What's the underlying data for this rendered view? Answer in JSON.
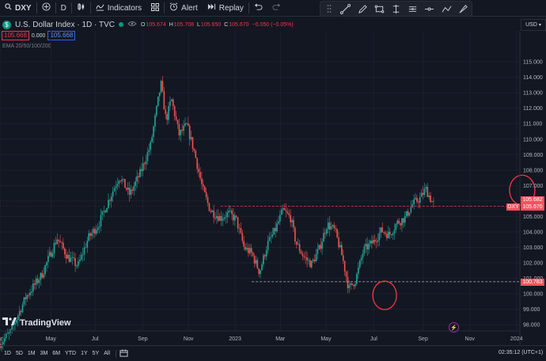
{
  "toolbar": {
    "symbol": "DXY",
    "interval": "D",
    "indicators_label": "Indicators",
    "alert_label": "Alert",
    "replay_label": "Replay"
  },
  "header": {
    "title": "U.S. Dollar Index · 1D · TVC",
    "o_label": "O",
    "o_value": "105.674",
    "h_label": "H",
    "h_value": "105.708",
    "l_label": "L",
    "l_value": "105.650",
    "c_label": "C",
    "c_value": "105.670",
    "change": "−0.050 (−0.05%)",
    "bid": "105.668",
    "spread": "0.000",
    "ask": "105.668",
    "ema_label": "EMA 20/50/100/200"
  },
  "currency": "USD",
  "price_axis": {
    "ticks": [
      "115.000",
      "114.000",
      "113.000",
      "112.000",
      "111.000",
      "110.000",
      "109.000",
      "108.000",
      "107.000",
      "106.000",
      "105.000",
      "104.000",
      "103.000",
      "102.000",
      "101.000",
      "100.000",
      "99.000",
      "98.000"
    ],
    "tag_high": "105.682",
    "tag_symbol": "DXY",
    "tag_last": "105.670",
    "tag_support": "100.783"
  },
  "time_axis": {
    "labels": [
      "ar",
      "May",
      "Jul",
      "Sep",
      "Nov",
      "2023",
      "Mar",
      "May",
      "Jul",
      "Sep",
      "Nov",
      "2024"
    ]
  },
  "logo_text": "TradingView",
  "bottom": {
    "timeframes": [
      "1D",
      "5D",
      "1M",
      "3M",
      "6M",
      "YTD",
      "1Y",
      "5Y",
      "All"
    ],
    "clock": "02:35:12 (UTC+1)"
  },
  "colors": {
    "background": "#131722",
    "up": "#26a69a",
    "down": "#ef5350",
    "annotation": "#f23645",
    "price_tag": "#f7525f"
  },
  "chart_data": {
    "type": "candlestick",
    "symbol": "DXY",
    "ylim": [
      97.6,
      117.0
    ],
    "resistance_level": 105.67,
    "support_level": 100.78,
    "circled_points": [
      [
        0.67,
        95.3
      ],
      [
        0.935,
        106.7
      ]
    ],
    "path": [
      [
        0.0,
        96.8
      ],
      [
        0.02,
        97.5
      ],
      [
        0.05,
        99.8
      ],
      [
        0.08,
        101.2
      ],
      [
        0.11,
        103.6
      ],
      [
        0.13,
        102.4
      ],
      [
        0.15,
        101.8
      ],
      [
        0.17,
        103.6
      ],
      [
        0.19,
        104.5
      ],
      [
        0.21,
        106.1
      ],
      [
        0.23,
        107.6
      ],
      [
        0.25,
        106.4
      ],
      [
        0.27,
        107.8
      ],
      [
        0.29,
        109.6
      ],
      [
        0.31,
        113.6
      ],
      [
        0.32,
        111.2
      ],
      [
        0.33,
        112.6
      ],
      [
        0.345,
        110.3
      ],
      [
        0.36,
        110.9
      ],
      [
        0.375,
        109.1
      ],
      [
        0.39,
        106.8
      ],
      [
        0.405,
        105.4
      ],
      [
        0.425,
        104.9
      ],
      [
        0.44,
        105.2
      ],
      [
        0.455,
        104.8
      ],
      [
        0.47,
        103.0
      ],
      [
        0.485,
        102.6
      ],
      [
        0.5,
        101.4
      ],
      [
        0.515,
        103.2
      ],
      [
        0.53,
        104.1
      ],
      [
        0.545,
        105.4
      ],
      [
        0.56,
        104.9
      ],
      [
        0.57,
        103.3
      ],
      [
        0.585,
        102.4
      ],
      [
        0.6,
        101.9
      ],
      [
        0.615,
        102.9
      ],
      [
        0.63,
        104.5
      ],
      [
        0.645,
        104.1
      ],
      [
        0.66,
        102.3
      ],
      [
        0.672,
        100.3
      ],
      [
        0.685,
        100.9
      ],
      [
        0.7,
        102.8
      ],
      [
        0.72,
        103.4
      ],
      [
        0.735,
        104.1
      ],
      [
        0.75,
        103.8
      ],
      [
        0.765,
        104.6
      ],
      [
        0.78,
        104.9
      ],
      [
        0.795,
        105.8
      ],
      [
        0.81,
        106.2
      ],
      [
        0.82,
        106.8
      ],
      [
        0.83,
        106.1
      ],
      [
        0.837,
        105.67
      ]
    ]
  }
}
